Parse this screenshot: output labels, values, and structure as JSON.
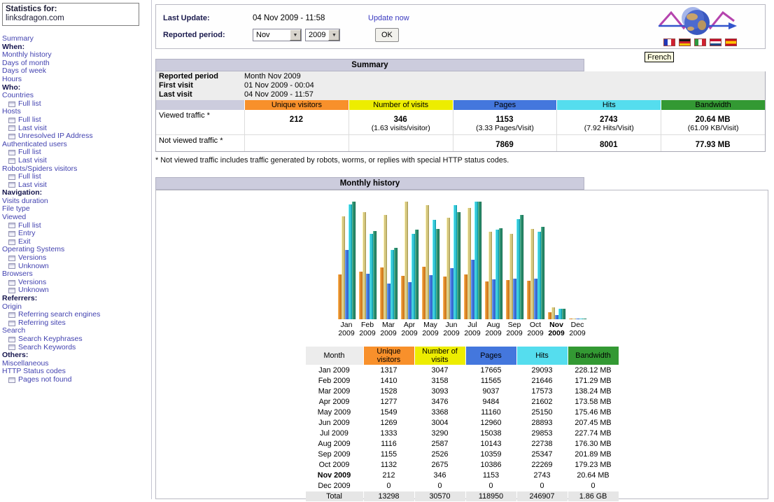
{
  "sidebar": {
    "statistics_for": "Statistics for:",
    "domain": "linksdragon.com",
    "items": [
      {
        "label": "Summary",
        "kind": "link"
      },
      {
        "label": "When:",
        "kind": "heading"
      },
      {
        "label": "Monthly history",
        "kind": "link"
      },
      {
        "label": "Days of month",
        "kind": "link"
      },
      {
        "label": "Days of week",
        "kind": "link"
      },
      {
        "label": "Hours",
        "kind": "link"
      },
      {
        "label": "Who:",
        "kind": "heading"
      },
      {
        "label": "Countries",
        "kind": "link"
      },
      {
        "label": "Full list",
        "kind": "sublink"
      },
      {
        "label": "Hosts",
        "kind": "link"
      },
      {
        "label": "Full list",
        "kind": "sublink"
      },
      {
        "label": "Last visit",
        "kind": "sublink"
      },
      {
        "label": "Unresolved IP Address",
        "kind": "sublink"
      },
      {
        "label": "Authenticated users",
        "kind": "link"
      },
      {
        "label": "Full list",
        "kind": "sublink"
      },
      {
        "label": "Last visit",
        "kind": "sublink"
      },
      {
        "label": "Robots/Spiders visitors",
        "kind": "link"
      },
      {
        "label": "Full list",
        "kind": "sublink"
      },
      {
        "label": "Last visit",
        "kind": "sublink"
      },
      {
        "label": "Navigation:",
        "kind": "heading"
      },
      {
        "label": "Visits duration",
        "kind": "link"
      },
      {
        "label": "File type",
        "kind": "link"
      },
      {
        "label": "Viewed",
        "kind": "link"
      },
      {
        "label": "Full list",
        "kind": "sublink"
      },
      {
        "label": "Entry",
        "kind": "sublink"
      },
      {
        "label": "Exit",
        "kind": "sublink"
      },
      {
        "label": "Operating Systems",
        "kind": "link"
      },
      {
        "label": "Versions",
        "kind": "sublink"
      },
      {
        "label": "Unknown",
        "kind": "sublink"
      },
      {
        "label": "Browsers",
        "kind": "link"
      },
      {
        "label": "Versions",
        "kind": "sublink"
      },
      {
        "label": "Unknown",
        "kind": "sublink"
      },
      {
        "label": "Referrers:",
        "kind": "heading"
      },
      {
        "label": "Origin",
        "kind": "link"
      },
      {
        "label": "Referring search engines",
        "kind": "sublink"
      },
      {
        "label": "Referring sites",
        "kind": "sublink"
      },
      {
        "label": "Search",
        "kind": "link"
      },
      {
        "label": "Search Keyphrases",
        "kind": "sublink"
      },
      {
        "label": "Search Keywords",
        "kind": "sublink"
      },
      {
        "label": "Others:",
        "kind": "heading"
      },
      {
        "label": "Miscellaneous",
        "kind": "link"
      },
      {
        "label": "HTTP Status codes",
        "kind": "link"
      },
      {
        "label": "Pages not found",
        "kind": "sublink"
      }
    ]
  },
  "header": {
    "last_update_label": "Last Update:",
    "last_update_value": "04 Nov 2009 - 11:58",
    "update_now_label": "Update now",
    "reported_period_label": "Reported period:",
    "month_value": "Nov",
    "year_value": "2009",
    "ok_label": "OK",
    "tooltip": "French",
    "flags": [
      {
        "name": "French"
      },
      {
        "name": "German"
      },
      {
        "name": "Italian"
      },
      {
        "name": "Dutch"
      },
      {
        "name": "Spanish"
      }
    ]
  },
  "summary": {
    "title": "Summary",
    "info": [
      {
        "label": "Reported period",
        "value": "Month Nov 2009"
      },
      {
        "label": "First visit",
        "value": "01 Nov 2009 - 00:04"
      },
      {
        "label": "Last visit",
        "value": "04 Nov 2009 - 11:57"
      }
    ],
    "columns": [
      {
        "label": "Unique visitors",
        "color": "#F8902B"
      },
      {
        "label": "Number of visits",
        "color": "#EDED00"
      },
      {
        "label": "Pages",
        "color": "#4477DD"
      },
      {
        "label": "Hits",
        "color": "#55DDEE"
      },
      {
        "label": "Bandwidth",
        "color": "#339933"
      }
    ],
    "viewed": {
      "label": "Viewed traffic *",
      "cells": [
        {
          "main": "212",
          "sub": ""
        },
        {
          "main": "346",
          "sub": "(1.63 visits/visitor)"
        },
        {
          "main": "1153",
          "sub": "(3.33 Pages/Visit)"
        },
        {
          "main": "2743",
          "sub": "(7.92 Hits/Visit)"
        },
        {
          "main": "20.64 MB",
          "sub": "(61.09 KB/Visit)"
        }
      ]
    },
    "not_viewed": {
      "label": "Not viewed traffic *",
      "cells": [
        {
          "main": "",
          "sub": ""
        },
        {
          "main": "",
          "sub": ""
        },
        {
          "main": "7869",
          "sub": ""
        },
        {
          "main": "8001",
          "sub": ""
        },
        {
          "main": "77.93 MB",
          "sub": ""
        }
      ]
    },
    "footnote": "* Not viewed traffic includes traffic generated by robots, worms, or replies with special HTTP status codes."
  },
  "monthly": {
    "title": "Monthly history",
    "table": {
      "headers": [
        "Month",
        "Unique visitors",
        "Number of visits",
        "Pages",
        "Hits",
        "Bandwidth"
      ],
      "header_colors": [
        "#ECECEC",
        "#F8902B",
        "#EDED00",
        "#4477DD",
        "#55DDEE",
        "#339933"
      ],
      "rows": [
        [
          "Jan 2009",
          "1317",
          "3047",
          "17665",
          "29093",
          "228.12 MB"
        ],
        [
          "Feb 2009",
          "1410",
          "3158",
          "11565",
          "21646",
          "171.29 MB"
        ],
        [
          "Mar 2009",
          "1528",
          "3093",
          "9037",
          "17573",
          "138.24 MB"
        ],
        [
          "Apr 2009",
          "1277",
          "3476",
          "9484",
          "21602",
          "173.58 MB"
        ],
        [
          "May 2009",
          "1549",
          "3368",
          "11160",
          "25150",
          "175.46 MB"
        ],
        [
          "Jun 2009",
          "1269",
          "3004",
          "12960",
          "28893",
          "207.45 MB"
        ],
        [
          "Jul 2009",
          "1333",
          "3290",
          "15038",
          "29853",
          "227.74 MB"
        ],
        [
          "Aug 2009",
          "1116",
          "2587",
          "10143",
          "22738",
          "176.30 MB"
        ],
        [
          "Sep 2009",
          "1155",
          "2526",
          "10359",
          "25347",
          "201.89 MB"
        ],
        [
          "Oct 2009",
          "1132",
          "2675",
          "10386",
          "22269",
          "179.23 MB"
        ],
        [
          "Nov 2009",
          "212",
          "346",
          "1153",
          "2743",
          "20.64 MB"
        ],
        [
          "Dec 2009",
          "0",
          "0",
          "0",
          "0",
          "0"
        ]
      ],
      "bold_row": "Nov 2009",
      "total": [
        "Total",
        "13298",
        "30570",
        "118950",
        "246907",
        "1.86 GB"
      ]
    }
  },
  "chart_data": {
    "type": "bar",
    "title": "Monthly history",
    "categories": [
      "Jan 2009",
      "Feb 2009",
      "Mar 2009",
      "Apr 2009",
      "May 2009",
      "Jun 2009",
      "Jul 2009",
      "Aug 2009",
      "Sep 2009",
      "Oct 2009",
      "Nov 2009",
      "Dec 2009"
    ],
    "bold_category": "Nov 2009",
    "series": [
      {
        "name": "Unique visitors",
        "color": "#DE8A2D",
        "values": [
          1317,
          1410,
          1528,
          1277,
          1549,
          1269,
          1333,
          1116,
          1155,
          1132,
          212,
          0
        ]
      },
      {
        "name": "Number of visits",
        "color": "#D3C57E",
        "values": [
          3047,
          3158,
          3093,
          3476,
          3368,
          3004,
          3290,
          2587,
          2526,
          2675,
          346,
          0
        ]
      },
      {
        "name": "Pages",
        "color": "#4477DD",
        "values": [
          17665,
          11565,
          9037,
          9484,
          11160,
          12960,
          15038,
          10143,
          10359,
          10386,
          1153,
          0
        ]
      },
      {
        "name": "Hits",
        "color": "#35C4D4",
        "values": [
          29093,
          21646,
          17573,
          21602,
          25150,
          28893,
          29853,
          22738,
          25347,
          22269,
          2743,
          0
        ]
      },
      {
        "name": "Bandwidth (MB)",
        "color": "#2E8E6E",
        "values": [
          228.12,
          171.29,
          138.24,
          173.58,
          175.46,
          207.45,
          227.74,
          176.3,
          201.89,
          179.23,
          20.64,
          0
        ]
      }
    ],
    "scale_groups": [
      [
        0,
        1
      ],
      [
        2,
        3
      ],
      [
        4
      ]
    ],
    "layout": {
      "legend": "none",
      "grid": false,
      "bars_normalized_per_scale_group": true
    }
  }
}
